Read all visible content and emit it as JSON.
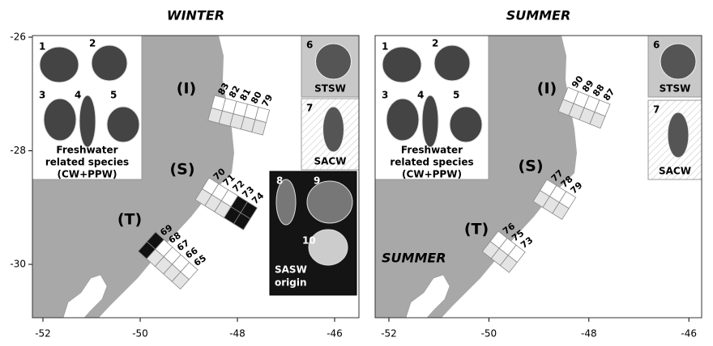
{
  "panels": [
    {
      "title": "WINTER",
      "xticks": [
        -52,
        -50,
        -48,
        -46
      ],
      "yticks": [
        -26,
        -28,
        -30
      ],
      "species_box": {
        "numbers": [
          1,
          2,
          3,
          4,
          5
        ],
        "caption": [
          "Freshwater",
          "related species",
          "(CW+PPW)"
        ]
      },
      "water_masses": [
        {
          "number": 6,
          "label": "STSW"
        },
        {
          "number": 7,
          "label": "SACW"
        }
      ],
      "sasw_box": {
        "numbers": [
          8,
          9,
          10
        ],
        "caption": [
          "SASW",
          "origin"
        ]
      },
      "transects": [
        {
          "label": "(I)",
          "stations": [
            83,
            82,
            81,
            80,
            79
          ]
        },
        {
          "label": "(S)",
          "stations": [
            70,
            71,
            72,
            73,
            74
          ]
        },
        {
          "label": "(T)",
          "stations": [
            69,
            68,
            67,
            66,
            65
          ]
        }
      ]
    },
    {
      "title": "SUMMER",
      "map_label": "SUMMER",
      "xticks": [
        -52,
        -50,
        -48,
        -46
      ],
      "species_box": {
        "numbers": [
          1,
          2,
          3,
          4,
          5
        ],
        "caption": [
          "Freshwater",
          "related species",
          "(CW+PPW)"
        ]
      },
      "water_masses": [
        {
          "number": 6,
          "label": "STSW"
        },
        {
          "number": 7,
          "label": "SACW"
        }
      ],
      "transects": [
        {
          "label": "(I)",
          "stations": [
            90,
            89,
            88,
            87
          ]
        },
        {
          "label": "(S)",
          "stations": [
            77,
            78,
            79
          ]
        },
        {
          "label": "(T)",
          "stations": [
            76,
            75,
            73
          ]
        }
      ]
    }
  ]
}
